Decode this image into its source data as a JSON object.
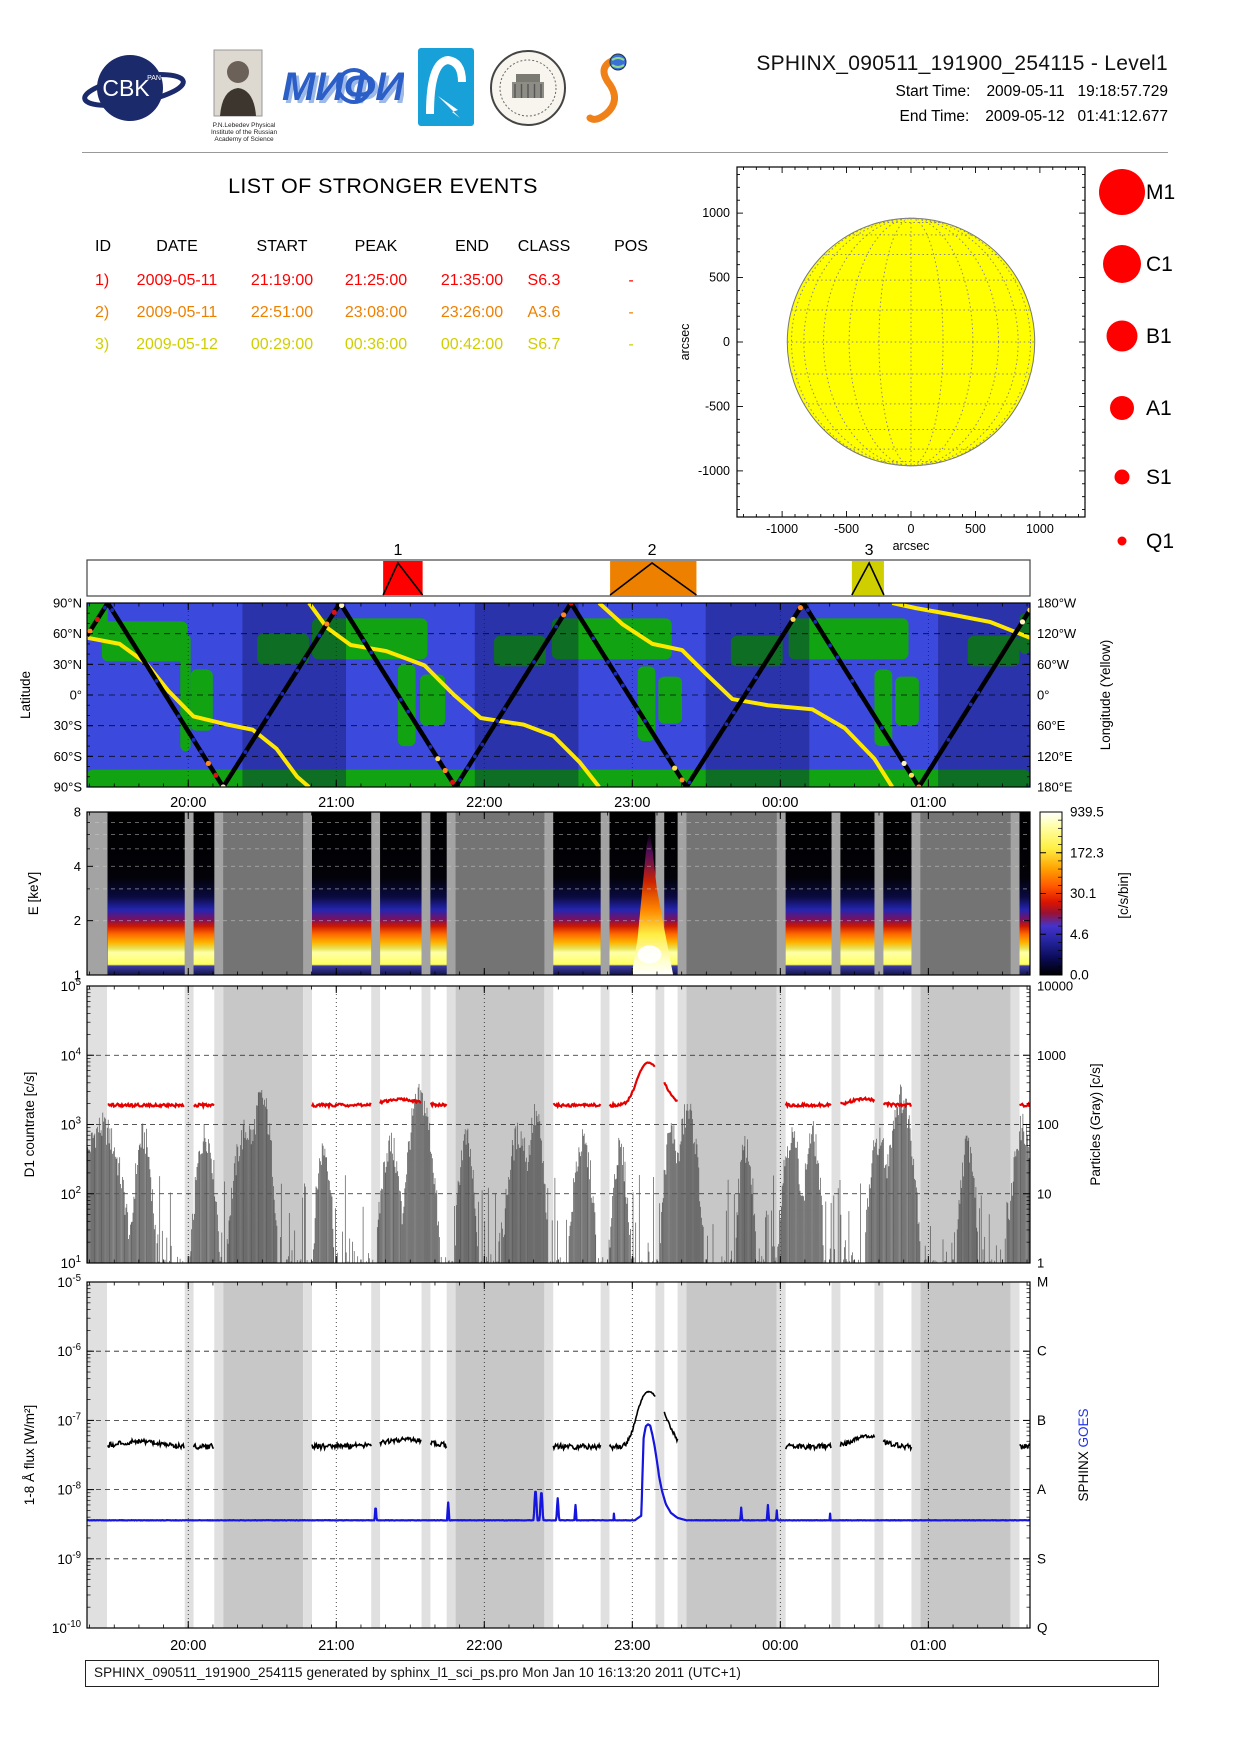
{
  "header": {
    "title": "SPHINX_090511_191900_254115 - Level1",
    "start_label": "Start Time:",
    "start_value": "2009-05-11   19:18:57.729",
    "end_label": "End Time:",
    "end_value": "2009-05-12   01:41:12.677",
    "logos": [
      {
        "name": "cbk-pan",
        "text": "CBK",
        "sub": "PAN"
      },
      {
        "name": "lebedev",
        "caption_lines": [
          "P.N.Lebedev Physical",
          "Institute of the Russian",
          "Academy of Science"
        ]
      },
      {
        "name": "mephi",
        "text": "МИФИ"
      },
      {
        "name": "arch"
      },
      {
        "name": "seal",
        "alt": "SPECULA PANORMITANA"
      },
      {
        "name": "sphinx-swirl"
      }
    ]
  },
  "events": {
    "title": "LIST OF STRONGER EVENTS",
    "columns": [
      "ID",
      "DATE",
      "START",
      "PEAK",
      "END",
      "CLASS",
      "POS"
    ],
    "rows": [
      {
        "id": "1)",
        "date": "2009-05-11",
        "start": "21:19:00",
        "peak": "21:25:00",
        "end": "21:35:00",
        "class": "S6.3",
        "pos": "-",
        "color": "#ff0000"
      },
      {
        "id": "2)",
        "date": "2009-05-11",
        "start": "22:51:00",
        "peak": "23:08:00",
        "end": "23:26:00",
        "class": "A3.6",
        "pos": "-",
        "color": "#ee8000"
      },
      {
        "id": "3)",
        "date": "2009-05-12",
        "start": "00:29:00",
        "peak": "00:36:00",
        "end": "00:42:00",
        "class": "S6.7",
        "pos": "-",
        "color": "#cfcf00"
      }
    ]
  },
  "legend": {
    "color": "#ff0000",
    "items": [
      {
        "label": "M1",
        "r": 23
      },
      {
        "label": "C1",
        "r": 19
      },
      {
        "label": "B1",
        "r": 15.5
      },
      {
        "label": "A1",
        "r": 12
      },
      {
        "label": "S1",
        "r": 7.5
      },
      {
        "label": "Q1",
        "r": 4.5
      }
    ]
  },
  "time_axis": {
    "span_h": 6.3708,
    "minor_step_h": 0.16667,
    "minor_offset_h": 0.0174,
    "hours": [
      {
        "label": "20:00",
        "t": 0.684
      },
      {
        "label": "21:00",
        "t": 1.684
      },
      {
        "label": "22:00",
        "t": 2.684
      },
      {
        "label": "23:00",
        "t": 3.684
      },
      {
        "label": "00:00",
        "t": 4.684
      },
      {
        "label": "01:00",
        "t": 5.684
      }
    ]
  },
  "gaps": {
    "wide": [
      [
        0.92,
        1.46
      ],
      [
        2.49,
        3.09
      ],
      [
        4.05,
        4.66
      ],
      [
        5.63,
        6.24
      ]
    ],
    "narrow": [
      [
        0,
        0.135
      ],
      [
        0.66,
        0.72
      ],
      [
        0.86,
        0.92
      ],
      [
        1.46,
        1.52
      ],
      [
        1.92,
        1.98
      ],
      [
        2.26,
        2.32
      ],
      [
        2.43,
        2.49
      ],
      [
        3.09,
        3.15
      ],
      [
        3.47,
        3.53
      ],
      [
        3.84,
        3.9
      ],
      [
        3.99,
        4.05
      ],
      [
        4.66,
        4.72
      ],
      [
        5.03,
        5.09
      ],
      [
        5.32,
        5.38
      ],
      [
        5.57,
        5.63
      ],
      [
        6.24,
        6.3
      ]
    ],
    "segments": [
      [
        0.14,
        0.66
      ],
      [
        0.72,
        0.86
      ],
      [
        1.52,
        1.92
      ],
      [
        1.98,
        2.26
      ],
      [
        2.32,
        2.43
      ],
      [
        3.15,
        3.47
      ],
      [
        3.53,
        3.84
      ],
      [
        3.9,
        3.99
      ],
      [
        4.72,
        5.03
      ],
      [
        5.09,
        5.32
      ],
      [
        5.38,
        5.57
      ],
      [
        6.3,
        6.3708
      ]
    ]
  },
  "footer": {
    "text": "SPHINX_090511_191900_254115 generated by sphinx_l1_sci_ps.pro Mon Jan 10 16:13:20 2011 (UTC+1)"
  },
  "chart_data": [
    {
      "id": "solar_disk",
      "type": "scatter",
      "title": "event positions on solar disk",
      "xlabel": "arcsec",
      "ylabel": "arcsec",
      "xlim": [
        -1350,
        1350
      ],
      "ylim": [
        -1350,
        1350
      ],
      "ticks": [
        -1000,
        -500,
        0,
        500,
        1000
      ],
      "solar_radius_arcsec": 960,
      "disk_color": "#ffff00",
      "points": []
    },
    {
      "id": "event_timeline",
      "type": "bar",
      "events": [
        {
          "n": "1",
          "color": "#ff0000",
          "start_h": 2.0007,
          "peak_h": 2.1007,
          "end_h": 2.2674
        },
        {
          "n": "2",
          "color": "#ee8000",
          "start_h": 3.534,
          "peak_h": 3.8173,
          "end_h": 4.1173
        },
        {
          "n": "3",
          "color": "#cfcf00",
          "start_h": 5.1673,
          "peak_h": 5.284,
          "end_h": 5.384
        }
      ]
    },
    {
      "id": "ground_track",
      "type": "line",
      "ylabel": "Latitude",
      "y2label": "Longitude (Yellow)",
      "lat_ticks": [
        90,
        60,
        30,
        0,
        -30,
        -60,
        -90
      ],
      "lat_tick_labels": [
        "90°N",
        "60°N",
        "30°N",
        "0°",
        "30°S",
        "60°S",
        "90°S"
      ],
      "lon_tick_labels": [
        "180°W",
        "120°W",
        "60°W",
        "0°",
        "60°E",
        "120°E",
        "180°E"
      ],
      "track_extremes": [
        [
          -0.645,
          -90
        ],
        [
          0.14,
          90
        ],
        [
          0.92,
          -90
        ],
        [
          1.71,
          90
        ],
        [
          2.49,
          -90
        ],
        [
          3.27,
          90
        ],
        [
          4.05,
          -90
        ],
        [
          4.84,
          90
        ],
        [
          5.62,
          -90
        ],
        [
          6.4,
          90
        ]
      ],
      "bright_segments": [
        [
          0.02,
          0.12
        ],
        [
          0.8,
          0.94
        ],
        [
          1.62,
          1.75
        ],
        [
          2.36,
          2.5
        ],
        [
          3.18,
          3.3
        ],
        [
          3.92,
          4.06
        ],
        [
          4.74,
          4.86
        ],
        [
          5.48,
          5.63
        ],
        [
          6.3,
          6.3708
        ]
      ],
      "bright_palette": [
        "#ffdd55",
        "#ff8822",
        "#dd1111",
        "#fffanc"
      ],
      "longitude_segments": [
        [
          [
            0,
            112
          ],
          [
            0.22,
            100
          ],
          [
            0.4,
            62
          ],
          [
            0.55,
            8
          ],
          [
            0.72,
            -42
          ],
          [
            0.95,
            -58
          ],
          [
            1.12,
            -68
          ],
          [
            1.28,
            -105
          ],
          [
            1.42,
            -160
          ],
          [
            1.5,
            -180
          ]
        ],
        [
          [
            1.5,
            180
          ],
          [
            1.62,
            132
          ],
          [
            1.78,
            98
          ],
          [
            2.02,
            86
          ],
          [
            2.28,
            58
          ],
          [
            2.48,
            0
          ],
          [
            2.66,
            -45
          ],
          [
            2.95,
            -58
          ],
          [
            3.15,
            -80
          ],
          [
            3.33,
            -132
          ],
          [
            3.46,
            -180
          ]
        ],
        [
          [
            3.46,
            180
          ],
          [
            3.62,
            138
          ],
          [
            3.82,
            100
          ],
          [
            4.02,
            88
          ],
          [
            4.18,
            42
          ],
          [
            4.36,
            -8
          ],
          [
            4.6,
            -20
          ],
          [
            4.9,
            -28
          ],
          [
            5.12,
            -65
          ],
          [
            5.32,
            -125
          ],
          [
            5.44,
            -180
          ]
        ],
        [
          [
            5.44,
            180
          ],
          [
            5.6,
            170
          ],
          [
            5.85,
            157
          ],
          [
            6.1,
            143
          ],
          [
            6.3708,
            112
          ]
        ]
      ],
      "night_bands": [
        [
          1.05,
          1.75
        ],
        [
          2.62,
          3.32
        ],
        [
          4.18,
          4.88
        ],
        [
          5.75,
          6.3708
        ]
      ],
      "land_patches": [
        {
          "t": [
            0.0,
            0.14
          ],
          "lat": [
            55,
            90
          ]
        },
        {
          "t": [
            0.1,
            0.68
          ],
          "lat": [
            33,
            72
          ]
        },
        {
          "t": [
            0.63,
            0.7
          ],
          "lat": [
            -55,
            60
          ]
        },
        {
          "t": [
            0.7,
            0.85
          ],
          "lat": [
            -35,
            25
          ]
        },
        {
          "t": [
            1.15,
            1.5
          ],
          "lat": [
            30,
            60
          ]
        },
        {
          "t": [
            1.52,
            2.3
          ],
          "lat": [
            35,
            75
          ]
        },
        {
          "t": [
            2.1,
            2.22
          ],
          "lat": [
            -50,
            30
          ]
        },
        {
          "t": [
            2.25,
            2.42
          ],
          "lat": [
            -30,
            20
          ]
        },
        {
          "t": [
            2.75,
            3.1
          ],
          "lat": [
            28,
            58
          ]
        },
        {
          "t": [
            3.14,
            3.95
          ],
          "lat": [
            35,
            75
          ]
        },
        {
          "t": [
            3.72,
            3.84
          ],
          "lat": [
            -45,
            28
          ]
        },
        {
          "t": [
            3.86,
            4.02
          ],
          "lat": [
            -28,
            18
          ]
        },
        {
          "t": [
            4.35,
            4.7
          ],
          "lat": [
            28,
            58
          ]
        },
        {
          "t": [
            4.74,
            5.55
          ],
          "lat": [
            35,
            75
          ]
        },
        {
          "t": [
            5.32,
            5.44
          ],
          "lat": [
            -50,
            25
          ]
        },
        {
          "t": [
            5.46,
            5.62
          ],
          "lat": [
            -30,
            18
          ]
        },
        {
          "t": [
            5.95,
            6.3
          ],
          "lat": [
            28,
            58
          ]
        },
        {
          "t": [
            6.3,
            6.3708
          ],
          "lat": [
            40,
            80
          ]
        },
        {
          "t": [
            0,
            6.3708
          ],
          "lat": [
            -90,
            -73
          ]
        }
      ],
      "ocean_color": "#3c49dd",
      "land_color": "#12a312",
      "track_color": "#000000",
      "longitude_color": "#ffe800"
    },
    {
      "id": "spectrogram",
      "type": "heatmap",
      "ylabel": "E [keV]",
      "ylim": [
        1,
        8
      ],
      "yticks": [
        1,
        2,
        4,
        8
      ],
      "yminor": [
        3,
        5,
        6,
        7
      ],
      "unit": "[c/s/bin]",
      "colorbar_ticks": [
        "939.5",
        "172.3",
        "30.1",
        "4.6",
        "0.0"
      ],
      "flare": {
        "apex_h": 3.8,
        "apex_keV": 6.3,
        "base": [
          3.68,
          3.96
        ],
        "core_keV": 1.3
      }
    },
    {
      "id": "countrate",
      "type": "line",
      "ylabel": "D1 countrate [c/s]",
      "y2label": "Particles (Gray) [c/s]",
      "ylim_exp": [
        1,
        5
      ],
      "y2_tick_labels": [
        "10000",
        "1000",
        "100",
        "10",
        "1"
      ],
      "series": [
        {
          "name": "D1 countrate",
          "color": "#e60000",
          "baseline": 1900,
          "noise": 0.05,
          "bumps": [
            {
              "t": 2.12,
              "p": 2300,
              "rise": 0.15,
              "fall": 0.15
            },
            {
              "t": 3.79,
              "p": 7800,
              "rise": 0.08,
              "fall": 0.11
            },
            {
              "t": 5.25,
              "p": 2350,
              "rise": 0.12,
              "fall": 0.12
            }
          ]
        },
        {
          "name": "Particles",
          "color": "#555555",
          "clusters": [
            [
              0.1,
              0.1,
              90
            ],
            [
              0.38,
              0.045,
              65
            ],
            [
              0.8,
              0.05,
              70
            ],
            [
              1.08,
              0.07,
              80
            ],
            [
              1.18,
              0.05,
              230
            ],
            [
              1.6,
              0.04,
              45
            ],
            [
              2.05,
              0.05,
              50
            ],
            [
              2.25,
              0.06,
              240
            ],
            [
              2.56,
              0.04,
              60
            ],
            [
              2.92,
              0.06,
              70
            ],
            [
              3.03,
              0.04,
              130
            ],
            [
              3.35,
              0.05,
              52
            ],
            [
              3.6,
              0.04,
              40
            ],
            [
              3.95,
              0.04,
              80
            ],
            [
              4.06,
              0.05,
              150
            ],
            [
              4.45,
              0.04,
              45
            ],
            [
              4.76,
              0.05,
              65
            ],
            [
              4.9,
              0.04,
              70
            ],
            [
              5.35,
              0.05,
              60
            ],
            [
              5.5,
              0.06,
              240
            ],
            [
              5.95,
              0.04,
              50
            ],
            [
              6.32,
              0.05,
              90
            ]
          ]
        }
      ]
    },
    {
      "id": "flux",
      "type": "line",
      "ylabel": "1-8 Å flux [W/m²]",
      "ylim_exp": [
        -10,
        -5
      ],
      "right_letters": [
        "M",
        "C",
        "B",
        "A",
        "S",
        "Q"
      ],
      "right_label_parts": [
        {
          "text": "SPHINX ",
          "color": "#000000"
        },
        {
          "text": "GOES",
          "color": "#2233ee"
        }
      ],
      "series": [
        {
          "name": "SPHINX",
          "color": "#000000",
          "baseline": 4.2e-08,
          "noise": 0.09,
          "bumps": [
            {
              "t": 0.36,
              "p": 5e-08,
              "rise": 0.18,
              "fall": 0.18
            },
            {
              "t": 2.15,
              "p": 5.3e-08,
              "rise": 0.22,
              "fall": 0.22
            },
            {
              "t": 3.79,
              "p": 2.6e-07,
              "rise": 0.075,
              "fall": 0.115
            },
            {
              "t": 5.27,
              "p": 5.9e-08,
              "rise": 0.13,
              "fall": 0.13
            }
          ]
        },
        {
          "name": "GOES",
          "color": "#1515dd",
          "baseline": 3.6e-09,
          "spikes": [
            [
              1.95,
              6e-09
            ],
            [
              2.44,
              6.5e-09
            ],
            [
              3.03,
              1.05e-08
            ],
            [
              3.07,
              1e-08
            ],
            [
              3.18,
              7.5e-09
            ],
            [
              3.3,
              6e-09
            ],
            [
              3.56,
              4.5e-09
            ],
            [
              4.42,
              5.5e-09
            ],
            [
              4.6,
              6e-09
            ],
            [
              4.66,
              5e-09
            ],
            [
              5.02,
              4.5e-09
            ]
          ],
          "flare_points": [
            [
              3.7,
              3.6e-09
            ],
            [
              3.745,
              4.2e-09
            ],
            [
              3.752,
              1.5e-08
            ],
            [
              3.76,
              5.5e-08
            ],
            [
              3.775,
              8.2e-08
            ],
            [
              3.79,
              8.8e-08
            ],
            [
              3.805,
              8.4e-08
            ],
            [
              3.82,
              6.2e-08
            ],
            [
              3.835,
              4.2e-08
            ],
            [
              3.85,
              2.6e-08
            ],
            [
              3.865,
              1.55e-08
            ],
            [
              3.885,
              9.5e-09
            ],
            [
              3.91,
              6.2e-09
            ],
            [
              3.945,
              4.6e-09
            ],
            [
              3.99,
              3.9e-09
            ],
            [
              4.05,
              3.6e-09
            ]
          ]
        }
      ]
    }
  ]
}
